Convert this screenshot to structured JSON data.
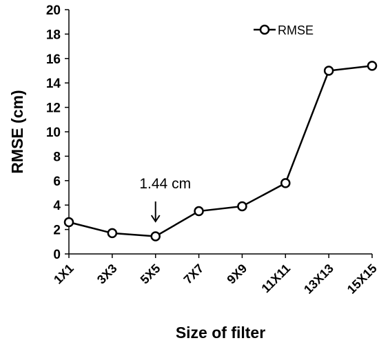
{
  "chart_data": {
    "type": "line",
    "categories": [
      "1X1",
      "3X3",
      "5X5",
      "7X7",
      "9X9",
      "11X11",
      "13X13",
      "15X15"
    ],
    "series": [
      {
        "name": "RMSE",
        "values": [
          2.6,
          1.7,
          1.44,
          3.5,
          3.9,
          5.8,
          15.0,
          15.4
        ]
      }
    ],
    "xlabel": "Size of filter",
    "ylabel": "RMSE (cm)",
    "ylim": [
      0,
      20
    ],
    "yticks": [
      0,
      2,
      4,
      6,
      8,
      10,
      12,
      14,
      16,
      18,
      20
    ],
    "grid": false,
    "legend": "top-right",
    "annotation": {
      "text": "1.44 cm",
      "category": "5X5",
      "value": 1.44
    }
  }
}
